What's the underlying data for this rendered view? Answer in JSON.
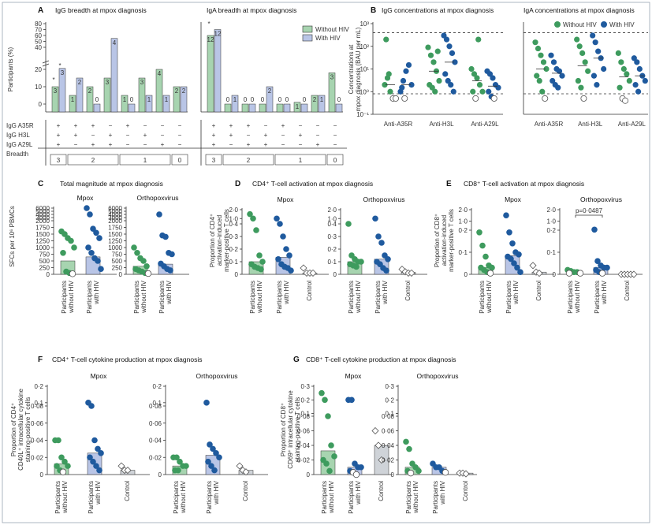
{
  "colors": {
    "without_hiv": "#3e9b5e",
    "with_hiv": "#1f5a9e",
    "bar_without": "#a7d4b0",
    "bar_with": "#b9c5e6",
    "control": "#ffffff"
  },
  "legend": {
    "without": "Without HIV",
    "with": "With HIV"
  },
  "panels": {
    "A": {
      "letter": "A",
      "title1": "IgG breadth at mpox diagnosis",
      "title2": "IgA breadth at mpox diagnosis",
      "ylabel": "Participants (%)",
      "rows": [
        "IgG A35R",
        "IgG H3L",
        "IgG A29L",
        "Breadth"
      ],
      "breadth_groups": [
        "3",
        "2",
        "1",
        "0"
      ]
    },
    "B": {
      "letter": "B",
      "title1": "IgG concentrations at mpox diagnosis",
      "title2": "IgA concentrations at mpox diagnosis",
      "ylabel1": "Concentrations at",
      "ylabel2": "mpox diagnosis (BAU per mL)"
    },
    "C": {
      "letter": "C",
      "title": "Total magnitude at mpox diagnosis",
      "ylabel": "SFCs per 10⁶ PBMCs"
    },
    "D": {
      "letter": "D",
      "title": "CD4⁺ T-cell activation at mpox diagnosis",
      "ylabel1": "Proportion of CD4⁺",
      "ylabel2": "activation-induced",
      "ylabel3": "marker-positive T cells"
    },
    "E": {
      "letter": "E",
      "title": "CD8⁺ T-cell activation at mpox diagnosis",
      "ylabel1": "Proportion of CD8⁺",
      "ylabel2": "activation-induced",
      "ylabel3": "marker-positive T cells",
      "pvalue": "p=0·0487"
    },
    "F": {
      "letter": "F",
      "title": "CD4⁺ T-cell cytokine production at mpox diagnosis",
      "ylabel1": "Proportion of CD4⁺",
      "ylabel2": "CD40L⁺ intracellular cytokine",
      "ylabel3": "staining-positive T cells"
    },
    "G": {
      "letter": "G",
      "title": "CD8⁺ T-cell cytokine production at mpox diagnosis",
      "ylabel1": "Proportion of CD8⁺",
      "ylabel2": "CD69⁺ intracellular cytokine",
      "ylabel3": "staining-positive T cells"
    }
  },
  "sub": {
    "mpox": "Mpox",
    "ortho": "Orthopoxvirus"
  },
  "xcats": {
    "p1": "Participants",
    "p2a": "without HIV",
    "p2b": "with HIV",
    "control": "Control"
  },
  "b_cats": [
    "Anti-A35R",
    "Anti-H3L",
    "Anti-A29L"
  ],
  "chart_data": [
    {
      "panel": "A-IgG",
      "type": "bar",
      "title": "IgG breadth at mpox diagnosis",
      "ylabel": "Participants (%)",
      "categories": [
        "A35R+H3L+A29L",
        "A35R+H3L",
        "A35R+A29L",
        "H3L+A29L",
        "A35R",
        "H3L",
        "A29L",
        "none"
      ],
      "series": [
        {
          "name": "Without HIV",
          "values": [
            10,
            5,
            10,
            15,
            5,
            15,
            20,
            10
          ],
          "counts": [
            3,
            1,
            2,
            3,
            1,
            3,
            4,
            2
          ]
        },
        {
          "name": "With HIV",
          "values": [
            22,
            15,
            0,
            55,
            0,
            5,
            5,
            10
          ],
          "counts": [
            3,
            2,
            0,
            4,
            0,
            1,
            1,
            2
          ]
        }
      ],
      "yticks": [
        "0",
        "10",
        "20",
        "30",
        "40",
        "50",
        "60",
        "70",
        "80"
      ],
      "annotations": [
        "*",
        "*"
      ]
    },
    {
      "panel": "A-IgA",
      "type": "bar",
      "title": "IgA breadth at mpox diagnosis",
      "ylabel": "Participants (%)",
      "categories": [
        "A35R+H3L+A29L",
        "A35R+H3L",
        "A35R+A29L",
        "H3L+A29L",
        "A35R",
        "H3L",
        "A29L",
        "none"
      ],
      "series": [
        {
          "name": "Without HIV",
          "values": [
            60,
            0,
            0,
            0,
            0,
            1,
            5,
            18
          ],
          "counts": [
            12,
            0,
            0,
            0,
            0,
            1,
            2,
            3
          ]
        },
        {
          "name": "With HIV",
          "values": [
            70,
            5,
            0,
            10,
            0,
            0,
            5,
            0
          ],
          "counts": [
            12,
            1,
            0,
            2,
            0,
            0,
            1,
            0
          ]
        }
      ],
      "annotations": [
        "*"
      ]
    },
    {
      "panel": "B-IgG",
      "type": "scatter",
      "log_y": true,
      "yticks": [
        "10⁻¹",
        "10⁰",
        "10¹",
        "10²",
        "10³"
      ],
      "ylim": [
        0.1,
        1000
      ],
      "categories": [
        "Anti-A35R",
        "Anti-H3L",
        "Anti-A29L"
      ],
      "series": [
        {
          "name": "Without HIV",
          "groups": [
            [
              2,
              4,
              1,
              0.5,
              0.5,
              200,
              6
            ],
            [
              90,
              40,
              20,
              8,
              3,
              2,
              1.5,
              1,
              60
            ],
            [
              10,
              6,
              4,
              2,
              1,
              1,
              0.5,
              200
            ]
          ]
        },
        {
          "name": "With HIV",
          "groups": [
            [
              1,
              3,
              8,
              15,
              2,
              1.5,
              0.5
            ],
            [
              300,
              200,
              100,
              50,
              20,
              6,
              3,
              2,
              1
            ],
            [
              8,
              6,
              4,
              2,
              1.5,
              1,
              0.6,
              0.5
            ]
          ]
        }
      ]
    },
    {
      "panel": "B-IgA",
      "type": "scatter",
      "log_y": true,
      "categories": [
        "Anti-A35R",
        "Anti-H3L",
        "Anti-A29L"
      ],
      "series": [
        {
          "name": "Without HIV",
          "groups": [
            [
              150,
              80,
              40,
              20,
              10,
              5,
              3,
              1,
              0.5
            ],
            [
              200,
              100,
              50,
              20,
              8,
              3,
              1.5,
              0.5
            ],
            [
              50,
              20,
              10,
              6,
              3,
              1.5,
              0.5,
              0.4
            ]
          ]
        },
        {
          "name": "With HIV",
          "groups": [
            [
              40,
              20,
              10,
              8,
              5,
              3,
              2,
              1.5
            ],
            [
              300,
              150,
              60,
              30,
              10,
              5,
              2
            ],
            [
              30,
              20,
              10,
              5,
              3,
              2,
              1
            ]
          ]
        }
      ]
    },
    {
      "panel": "C",
      "type": "scatter",
      "title": "Total magnitude at mpox diagnosis",
      "ylabel": "SFCs per 10⁶ PBMCs",
      "yticks": [
        "0",
        "250",
        "500",
        "750",
        "1000",
        "1250",
        "1500",
        "1750",
        "2000",
        "3000",
        "4000",
        "5000",
        "6000"
      ],
      "groups": [
        {
          "sub": "Mpox",
          "cat": "without HIV",
          "values": [
            1600,
            1500,
            1350,
            1250,
            1000,
            800,
            100,
            50,
            20
          ],
          "median": 500
        },
        {
          "sub": "Mpox",
          "cat": "with HIV",
          "values": [
            6000,
            4000,
            1700,
            1550,
            1350,
            1000,
            800,
            600,
            500,
            200
          ],
          "median": 650
        },
        {
          "sub": "Orthopoxvirus",
          "cat": "without HIV",
          "values": [
            1000,
            800,
            600,
            500,
            300,
            200,
            150,
            100,
            50,
            30
          ],
          "median": 300
        },
        {
          "sub": "Orthopoxvirus",
          "cat": "with HIV",
          "values": [
            4000,
            1450,
            1400,
            800,
            750,
            400,
            300,
            200,
            150
          ],
          "median": 380
        }
      ]
    },
    {
      "panel": "D",
      "type": "scatter",
      "title": "CD4⁺ T-cell activation at mpox diagnosis",
      "yticks": [
        "0",
        "0·1",
        "0·2",
        "0·3",
        "0·4",
        "1·0",
        "2·0"
      ],
      "groups": [
        {
          "sub": "Mpox",
          "cat": "without HIV",
          "values": [
            1.5,
            1.0,
            0.35,
            0.15,
            0.1,
            0.08,
            0.06,
            0.05,
            0.04
          ]
        },
        {
          "sub": "Mpox",
          "cat": "with HIV",
          "values": [
            1.0,
            0.4,
            0.3,
            0.2,
            0.15,
            0.12,
            0.08,
            0.06,
            0.05,
            0.03
          ]
        },
        {
          "sub": "Mpox",
          "cat": "Control",
          "values": [
            0.05,
            0.01,
            0.01,
            0.01
          ]
        },
        {
          "sub": "Orthopoxvirus",
          "cat": "without HIV",
          "values": [
            0.4,
            0.15,
            0.12,
            0.1,
            0.1,
            0.08,
            0.07,
            0.06
          ]
        },
        {
          "sub": "Orthopoxvirus",
          "cat": "with HIV",
          "values": [
            1.0,
            0.3,
            0.25,
            0.15,
            0.12,
            0.1,
            0.08,
            0.05,
            0.03
          ]
        },
        {
          "sub": "Orthopoxvirus",
          "cat": "Control",
          "values": [
            0.04,
            0.02,
            0.01,
            0.01
          ]
        }
      ]
    },
    {
      "panel": "E",
      "type": "scatter",
      "title": "CD8⁺ T-cell activation at mpox diagnosis",
      "yticks": [
        "0",
        "0·1",
        "0·2",
        "1·0",
        "2·0"
      ],
      "groups": [
        {
          "sub": "Mpox",
          "cat": "without HIV",
          "values": [
            0.19,
            0.13,
            0.08,
            0.04,
            0.03,
            0.03,
            0.02,
            0.01,
            0.005
          ]
        },
        {
          "sub": "Mpox",
          "cat": "with HIV",
          "values": [
            1.5,
            0.19,
            0.14,
            0.1,
            0.09,
            0.08,
            0.07,
            0.05,
            0.03,
            0.01
          ]
        },
        {
          "sub": "Mpox",
          "cat": "Control",
          "values": [
            0.04,
            0.01,
            0.005
          ]
        },
        {
          "sub": "Orthopoxvirus",
          "cat": "without HIV",
          "values": [
            0.02,
            0.015,
            0.01,
            0.01,
            0.005,
            0.005
          ]
        },
        {
          "sub": "Orthopoxvirus",
          "cat": "with HIV",
          "values": [
            0.25,
            0.06,
            0.04,
            0.03,
            0.03,
            0.02,
            0.01,
            0.005
          ]
        },
        {
          "sub": "Orthopoxvirus",
          "cat": "Control",
          "values": [
            0,
            0,
            0,
            0,
            0
          ]
        }
      ],
      "annotations": [
        "p=0·0487"
      ]
    },
    {
      "panel": "F",
      "type": "scatter",
      "title": "CD4⁺ T-cell cytokine production at mpox diagnosis",
      "yticks": [
        "0",
        "0·02",
        "0·04",
        "0·06",
        "0·08",
        "0·1",
        "0·2"
      ],
      "groups": [
        {
          "sub": "Mpox",
          "cat": "without HIV",
          "values": [
            0.04,
            0.04,
            0.02,
            0.015,
            0.01,
            0.01,
            0.005,
            0.003
          ]
        },
        {
          "sub": "Mpox",
          "cat": "with HIV",
          "values": [
            0.1,
            0.08,
            0.04,
            0.03,
            0.025,
            0.02,
            0.015,
            0.01,
            0.005
          ]
        },
        {
          "sub": "Mpox",
          "cat": "Control",
          "values": [
            0.01,
            0.005,
            0.005
          ]
        },
        {
          "sub": "Orthopoxvirus",
          "cat": "without HIV",
          "values": [
            0.02,
            0.02,
            0.015,
            0.01,
            0.01,
            0.005,
            0.005
          ]
        },
        {
          "sub": "Orthopoxvirus",
          "cat": "with HIV",
          "values": [
            0.1,
            0.035,
            0.03,
            0.025,
            0.02,
            0.015,
            0.01,
            0.005
          ]
        },
        {
          "sub": "Orthopoxvirus",
          "cat": "Control",
          "values": [
            0.01,
            0.005,
            0.003
          ]
        }
      ]
    },
    {
      "panel": "G",
      "type": "scatter",
      "title": "CD8⁺ T-cell cytokine production at mpox diagnosis",
      "yticks": [
        "0",
        "0·02",
        "0·04",
        "0·06",
        "0·08",
        "0·1",
        "0·2",
        "0·3"
      ],
      "groups": [
        {
          "sub": "Mpox",
          "cat": "without HIV",
          "values": [
            0.25,
            0.2,
            0.08,
            0.04,
            0.025,
            0.02,
            0.015,
            0.005
          ]
        },
        {
          "sub": "Mpox",
          "cat": "with HIV",
          "values": [
            0.2,
            0.2,
            0.015,
            0.01,
            0.01,
            0.005,
            0.003,
            0
          ]
        },
        {
          "sub": "Mpox",
          "cat": "Control",
          "values": [
            0.06,
            0.04,
            0.02
          ]
        },
        {
          "sub": "Orthopoxvirus",
          "cat": "without HIV",
          "values": [
            0.045,
            0.035,
            0.015,
            0.01,
            0.005,
            0.005,
            0.002
          ]
        },
        {
          "sub": "Orthopoxvirus",
          "cat": "with HIV",
          "values": [
            0.015,
            0.01,
            0.01,
            0.005,
            0.003
          ]
        },
        {
          "sub": "Orthopoxvirus",
          "cat": "Control",
          "values": [
            0.002,
            0.002,
            0.001
          ]
        }
      ]
    }
  ]
}
